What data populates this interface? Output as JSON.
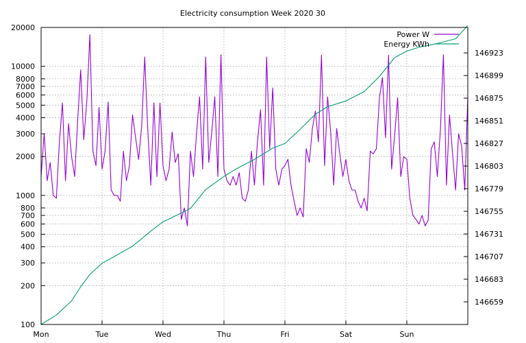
{
  "chart_data": {
    "type": "line",
    "title": "Electricity consumption Week 2020 30",
    "x_ticks": [
      "Mon",
      "Tue",
      "Wed",
      "Thu",
      "Fri",
      "Sat",
      "Sun"
    ],
    "y_left": {
      "scale": "log",
      "range": [
        100,
        20000
      ],
      "ticks": [
        100,
        200,
        300,
        400,
        500,
        600,
        700,
        800,
        1000,
        2000,
        3000,
        4000,
        5000,
        6000,
        7000,
        8000,
        10000,
        20000
      ],
      "tick_labels": [
        "100",
        "200",
        "300",
        "400",
        "500",
        "600",
        "700",
        "800",
        "1000",
        "2000",
        "3000",
        "4000",
        "5000",
        "6000",
        "7000",
        "8000",
        "10000",
        "20000"
      ]
    },
    "y_right": {
      "scale": "linear",
      "range": [
        146635,
        146950
      ],
      "ticks": [
        146659,
        146683,
        146707,
        146731,
        146755,
        146779,
        146803,
        146827,
        146851,
        146875,
        146899,
        146923
      ],
      "tick_labels": [
        "146659",
        "146683",
        "146707",
        "146731",
        "146755",
        "146779",
        "146803",
        "146827",
        "146851",
        "146875",
        "146899",
        "146923"
      ]
    },
    "x_range_days": [
      0,
      7
    ],
    "grid": true,
    "legend_position": "top-right",
    "series": [
      {
        "name": "Power W",
        "axis": "left",
        "color": "#9400d3",
        "x": [
          0.0,
          0.05,
          0.1,
          0.15,
          0.2,
          0.25,
          0.3,
          0.35,
          0.4,
          0.45,
          0.5,
          0.55,
          0.6,
          0.65,
          0.7,
          0.75,
          0.8,
          0.85,
          0.9,
          0.95,
          1.0,
          1.05,
          1.1,
          1.15,
          1.2,
          1.25,
          1.3,
          1.35,
          1.4,
          1.45,
          1.5,
          1.55,
          1.6,
          1.65,
          1.7,
          1.75,
          1.8,
          1.85,
          1.9,
          1.95,
          2.0,
          2.05,
          2.1,
          2.15,
          2.2,
          2.25,
          2.3,
          2.35,
          2.4,
          2.45,
          2.5,
          2.55,
          2.6,
          2.65,
          2.7,
          2.75,
          2.8,
          2.85,
          2.9,
          2.95,
          3.0,
          3.05,
          3.1,
          3.15,
          3.2,
          3.25,
          3.3,
          3.35,
          3.4,
          3.45,
          3.5,
          3.55,
          3.6,
          3.65,
          3.7,
          3.75,
          3.8,
          3.85,
          3.9,
          3.95,
          4.0,
          4.05,
          4.1,
          4.15,
          4.2,
          4.25,
          4.3,
          4.35,
          4.4,
          4.45,
          4.5,
          4.55,
          4.6,
          4.65,
          4.7,
          4.75,
          4.8,
          4.85,
          4.9,
          4.95,
          5.0,
          5.05,
          5.1,
          5.15,
          5.2,
          5.25,
          5.3,
          5.35,
          5.4,
          5.45,
          5.5,
          5.55,
          5.6,
          5.65,
          5.7,
          5.75,
          5.8,
          5.85,
          5.9,
          5.95,
          6.0,
          6.05,
          6.1,
          6.15,
          6.2,
          6.25,
          6.3,
          6.35,
          6.4,
          6.45,
          6.5,
          6.55,
          6.6,
          6.65,
          6.7,
          6.75,
          6.8,
          6.85,
          6.9,
          6.95,
          7.0
        ],
        "values": [
          1400,
          3000,
          1300,
          1800,
          1000,
          950,
          2600,
          5200,
          1300,
          3600,
          2000,
          1400,
          3800,
          9400,
          2700,
          5400,
          17600,
          2200,
          1700,
          4800,
          1600,
          2200,
          5300,
          1100,
          1000,
          1000,
          900,
          2200,
          1300,
          1700,
          4200,
          2800,
          1900,
          3400,
          11800,
          3200,
          1200,
          5200,
          1400,
          5200,
          1700,
          1300,
          1600,
          3100,
          1800,
          2100,
          650,
          800,
          580,
          2200,
          1400,
          3000,
          5800,
          1600,
          11800,
          1800,
          3100,
          5800,
          1400,
          12300,
          1600,
          1300,
          1200,
          1400,
          1200,
          1500,
          950,
          900,
          1100,
          2200,
          1200,
          2600,
          4600,
          1200,
          11800,
          2300,
          6800,
          1600,
          1200,
          1600,
          1700,
          1900,
          1200,
          900,
          700,
          800,
          680,
          2300,
          1800,
          3300,
          4500,
          2600,
          12200,
          1700,
          5800,
          3100,
          1200,
          3300,
          2100,
          1400,
          1900,
          1300,
          1100,
          1100,
          900,
          800,
          950,
          760,
          2200,
          2100,
          2300,
          5700,
          8200,
          2800,
          12200,
          1600,
          2900,
          5700,
          1400,
          2000,
          1900,
          950,
          700,
          650,
          600,
          700,
          580,
          640,
          2300,
          2600,
          1400,
          3200,
          12300,
          1200,
          4200,
          2100,
          1100,
          3000,
          2400,
          1100,
          5800
        ]
      },
      {
        "name": "Energy KWh",
        "axis": "right",
        "color": "#009e73",
        "x": [
          0.0,
          0.25,
          0.5,
          0.65,
          0.8,
          1.0,
          1.2,
          1.5,
          1.8,
          2.0,
          2.2,
          2.45,
          2.7,
          3.0,
          3.2,
          3.5,
          3.8,
          4.0,
          4.25,
          4.5,
          4.7,
          5.0,
          5.3,
          5.55,
          5.8,
          6.0,
          6.2,
          6.5,
          6.8,
          7.0
        ],
        "values": [
          146635,
          146645,
          146660,
          146675,
          146688,
          146700,
          146707,
          146718,
          146734,
          146744,
          146750,
          146758,
          146778,
          146792,
          146800,
          146810,
          146822,
          146827,
          146842,
          146858,
          146866,
          146872,
          146882,
          146898,
          146918,
          146925,
          146929,
          146933,
          146938,
          146952
        ]
      }
    ]
  }
}
